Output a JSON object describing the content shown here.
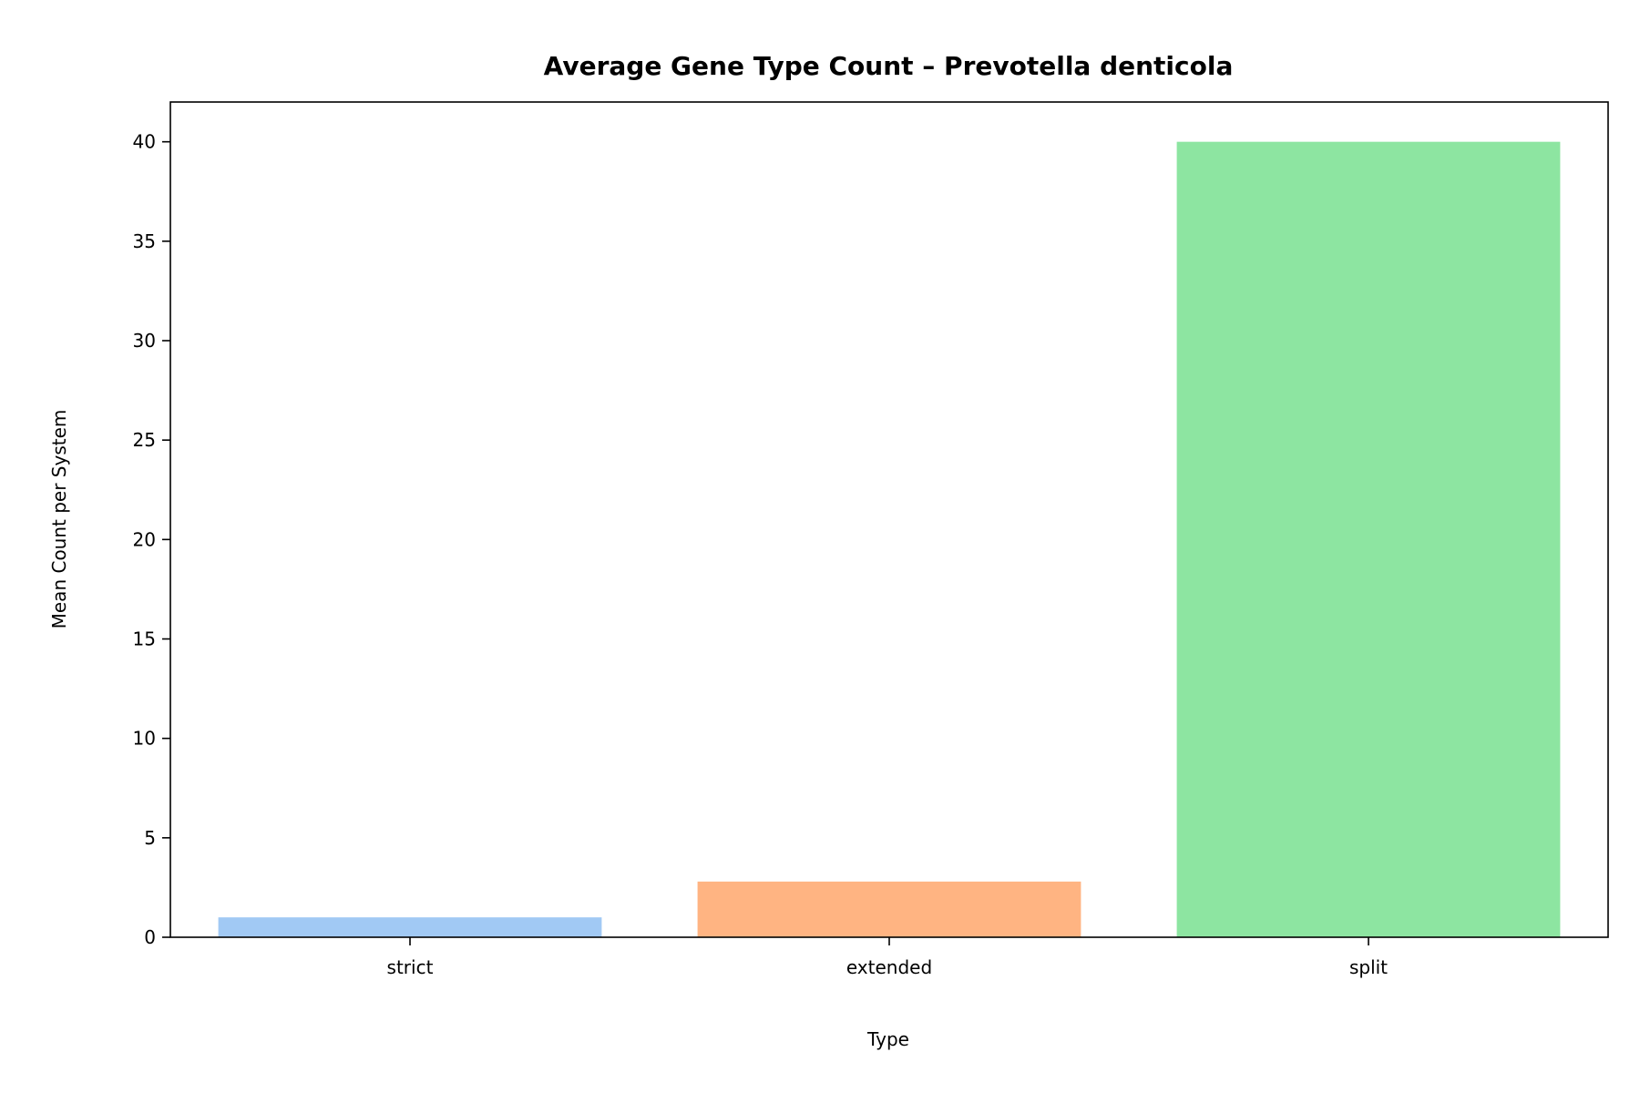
{
  "chart_data": {
    "type": "bar",
    "title": "Average Gene Type Count – Prevotella denticola",
    "xlabel": "Type",
    "ylabel": "Mean Count per System",
    "categories": [
      "strict",
      "extended",
      "split"
    ],
    "values": [
      1.0,
      2.8,
      40.0
    ],
    "colors": [
      "#a1c9f4",
      "#ffb482",
      "#8de5a1"
    ],
    "ylim": [
      0,
      42
    ],
    "yticks": [
      0,
      5,
      10,
      15,
      20,
      25,
      30,
      35,
      40
    ],
    "grid": false,
    "legend": "none"
  }
}
